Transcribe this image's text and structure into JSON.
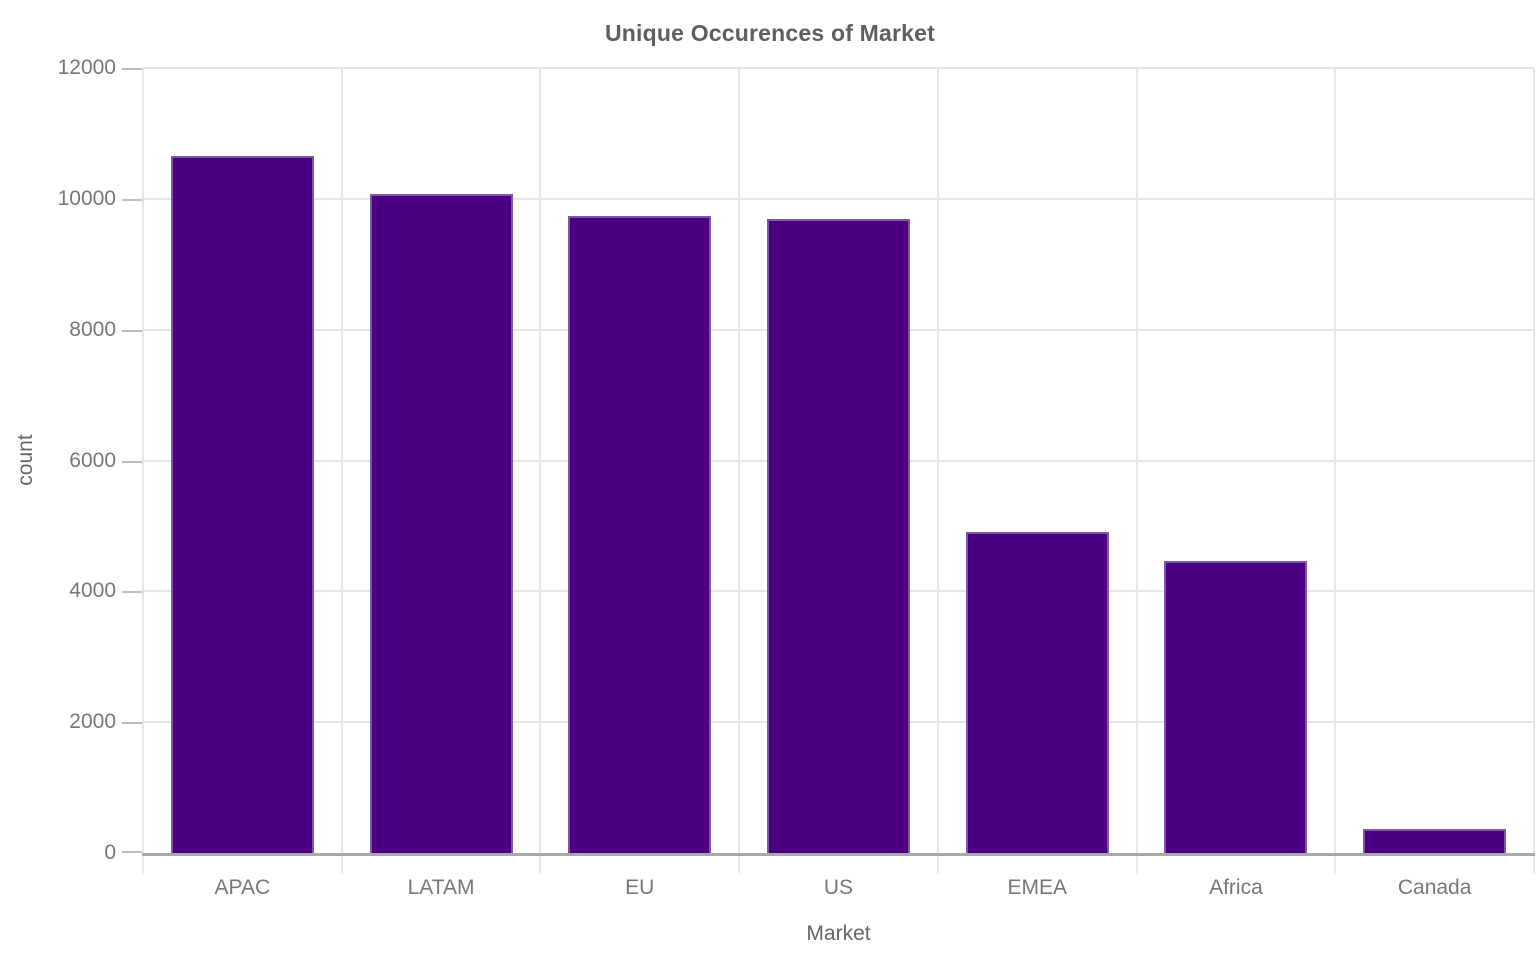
{
  "chart_data": {
    "type": "bar",
    "title": "Unique Occurences of Market",
    "xlabel": "Market",
    "ylabel": "count",
    "categories": [
      "APAC",
      "LATAM",
      "EU",
      "US",
      "EMEA",
      "Africa",
      "Canada"
    ],
    "values": [
      10660,
      10080,
      9740,
      9690,
      4910,
      4460,
      370
    ],
    "ylim": [
      0,
      12000
    ],
    "yticks": [
      0,
      2000,
      4000,
      6000,
      8000,
      10000,
      12000
    ],
    "grid": "on",
    "legend": "none",
    "colors": {
      "bar_fill": "#4B0082",
      "bar_stroke": "#7E57A8",
      "gridline": "#E6E6E6",
      "axis_line": "#A9A9A9",
      "tick_mark": "#BDBDBD",
      "tick_label": "#777777",
      "axis_title": "#666666",
      "title": "#5E5E5E",
      "background": "#FFFFFF"
    }
  }
}
